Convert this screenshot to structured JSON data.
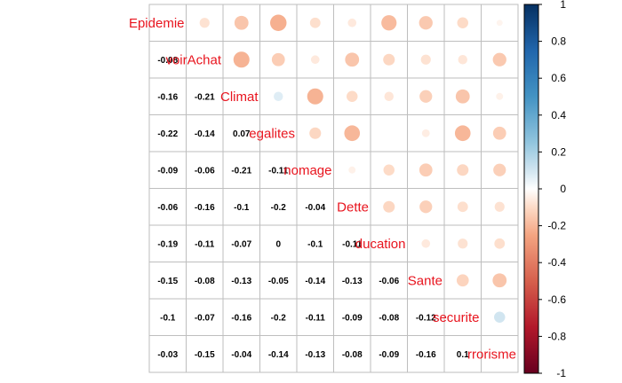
{
  "chart_data": {
    "type": "heatmap",
    "title": "",
    "variables": [
      "Epidemie",
      "PouvoirAchat",
      "Climat",
      "Inegalites",
      "Chomage",
      "Dette",
      "Education",
      "Sante",
      "Insecurite",
      "Terrorisme"
    ],
    "variable_labels_visible": [
      "Epidemie",
      "voirAchat",
      "Climat",
      "egalites",
      "nomage",
      "Dette",
      "ducation",
      "Sante",
      "securite",
      "rrorisme"
    ],
    "lower_triangle_coefficients": [
      [],
      [
        -0.08
      ],
      [
        -0.16,
        -0.21
      ],
      [
        -0.22,
        -0.14,
        0.07
      ],
      [
        -0.09,
        -0.06,
        -0.21,
        -0.11
      ],
      [
        -0.06,
        -0.16,
        -0.1,
        -0.2,
        -0.04
      ],
      [
        -0.19,
        -0.11,
        -0.07,
        0,
        -0.1,
        -0.11
      ],
      [
        -0.15,
        -0.08,
        -0.13,
        -0.05,
        -0.14,
        -0.13,
        -0.06
      ],
      [
        -0.1,
        -0.07,
        -0.16,
        -0.2,
        -0.11,
        -0.09,
        -0.08,
        -0.12
      ],
      [
        -0.03,
        -0.15,
        -0.04,
        -0.14,
        -0.13,
        -0.08,
        -0.09,
        -0.16,
        0.1
      ]
    ],
    "lower_triangle_coefficient_labels": [
      [],
      [
        "-0.08"
      ],
      [
        "-0.16",
        "-0.21"
      ],
      [
        "-0.22",
        "-0.14",
        "0.07"
      ],
      [
        "-0.09",
        "-0.06",
        "-0.21",
        "-0.11"
      ],
      [
        "-0.06",
        "-0.16",
        "-0.1",
        "-0.2",
        "-0.04"
      ],
      [
        "-0.19",
        "-0.11",
        "-0.07",
        "0",
        "-0.1",
        "-0.11"
      ],
      [
        "-0.15",
        "-0.08",
        "-0.13",
        "-0.05",
        "-0.14",
        "-0.13",
        "-0.06"
      ],
      [
        "-0.1",
        "-0.07",
        "-0.16",
        "-0.2",
        "-0.11",
        "-0.09",
        "-0.08",
        "-0.12"
      ],
      [
        "-0.03",
        "-0.15",
        "-0.04",
        "-0.14",
        "-0.13",
        "-0.08",
        "-0.09",
        "-0.16",
        "0.1"
      ]
    ],
    "upper_method": "circle",
    "lower_method": "number",
    "color_scale": {
      "range": [
        -1,
        1
      ],
      "ticks": [
        1,
        0.8,
        0.6,
        0.4,
        0.2,
        0,
        -0.2,
        -0.4,
        -0.6,
        -0.8,
        -1
      ],
      "tick_labels": [
        "1",
        "0.8",
        "0.6",
        "0.4",
        "0.2",
        "0",
        "-0.2",
        "-0.4",
        "-0.6",
        "-0.8",
        "-1"
      ],
      "stops": [
        {
          "value": -1,
          "color": "#67001f"
        },
        {
          "value": -0.75,
          "color": "#b2182b"
        },
        {
          "value": -0.5,
          "color": "#d6604d"
        },
        {
          "value": -0.25,
          "color": "#f4a582"
        },
        {
          "value": -0.1,
          "color": "#fddbc7"
        },
        {
          "value": 0,
          "color": "#ffffff"
        },
        {
          "value": 0.1,
          "color": "#d1e5f0"
        },
        {
          "value": 0.25,
          "color": "#92c5de"
        },
        {
          "value": 0.5,
          "color": "#4393c3"
        },
        {
          "value": 0.75,
          "color": "#2166ac"
        },
        {
          "value": 1,
          "color": "#053061"
        }
      ]
    },
    "colors": {
      "label": "#e8141e",
      "grid": "#bebebe",
      "text": "#000000"
    },
    "legend_placement": "right"
  }
}
